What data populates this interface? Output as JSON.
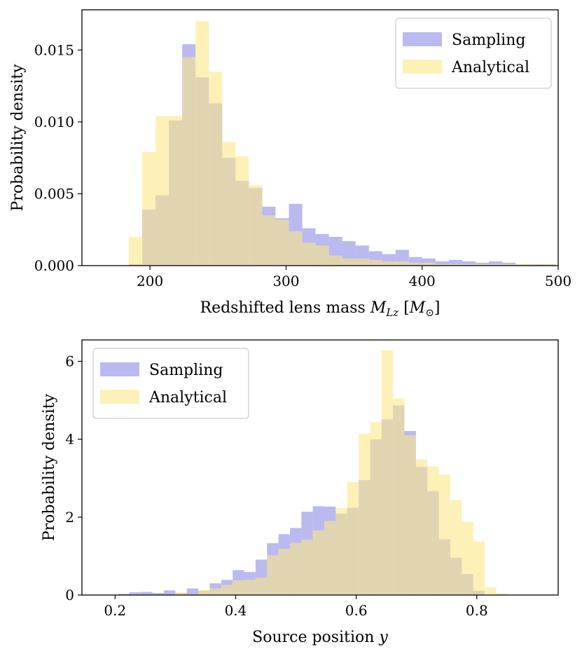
{
  "colors": {
    "sampling": "#8c8ce6",
    "analytical": "#fbe787",
    "frame": "#000000",
    "legend_border": "#cccccc"
  },
  "chart_data": [
    {
      "type": "histogram",
      "id": "mass",
      "title": "",
      "xlabel_parts": {
        "prefix": "Redshifted lens mass ",
        "symbol": "M",
        "subscript": "Lz",
        "unit_open": " [",
        "unit_symbol": "M",
        "unit_subscript": "⊙",
        "unit_close": "]"
      },
      "ylabel": "Probability density",
      "xlim": [
        150,
        500
      ],
      "ylim": [
        0,
        0.0178
      ],
      "xticks": [
        200,
        300,
        400,
        500
      ],
      "xtick_labels": [
        "200",
        "300",
        "400",
        "500"
      ],
      "yticks": [
        0,
        0.005,
        0.01,
        0.015
      ],
      "ytick_labels": [
        "0.000",
        "0.005",
        "0.010",
        "0.015"
      ],
      "legend": {
        "position": "top-right",
        "entries": [
          "Sampling",
          "Analytical"
        ]
      },
      "bin_width": 9.8,
      "bin_start": 184.5,
      "series": [
        {
          "name": "Sampling",
          "color_key": "sampling",
          "values": [
            0.0001,
            0.0039,
            0.0049,
            0.0101,
            0.0154,
            0.0131,
            0.0113,
            0.0075,
            0.0059,
            0.0054,
            0.0041,
            0.0033,
            0.0043,
            0.0026,
            0.0022,
            0.002,
            0.0017,
            0.0014,
            0.001,
            0.0008,
            0.0011,
            0.0006,
            0.0005,
            0.0003,
            0.0004,
            0.0003,
            0.0002,
            0.0003,
            0.0002,
            0.0001,
            0.0001,
            0.0001
          ]
        },
        {
          "name": "Analytical",
          "color_key": "analytical",
          "values": [
            0.002,
            0.0079,
            0.0104,
            0.0104,
            0.0145,
            0.017,
            0.0135,
            0.0086,
            0.0076,
            0.0056,
            0.0035,
            0.0032,
            0.0024,
            0.0016,
            0.0014,
            0.0007,
            0.0005,
            0.0005,
            0.0004,
            0.0003,
            0.0003,
            0.0002,
            0.0002,
            0.0001,
            0.0001,
            0.0001,
            0.0001,
            0.0001,
            0.0001,
            0.0001,
            0.0001,
            0.0001
          ]
        }
      ]
    },
    {
      "type": "histogram",
      "id": "position",
      "title": "",
      "xlabel_parts": {
        "prefix": "Source position ",
        "symbol": "y"
      },
      "ylabel": "Probability density",
      "xlim": [
        0.145,
        0.935
      ],
      "ylim": [
        0,
        6.55
      ],
      "xticks": [
        0.2,
        0.4,
        0.6,
        0.8
      ],
      "xtick_labels": [
        "0.2",
        "0.4",
        "0.6",
        "0.8"
      ],
      "yticks": [
        0,
        2,
        4,
        6
      ],
      "ytick_labels": [
        "0",
        "2",
        "4",
        "6"
      ],
      "legend": {
        "position": "top-left",
        "entries": [
          "Sampling",
          "Analytical"
        ]
      },
      "bin_width": 0.019,
      "bin_start": 0.167,
      "series": [
        {
          "name": "Sampling",
          "color_key": "sampling",
          "values": [
            0.0,
            0.0,
            0.03,
            0.07,
            0.08,
            0.05,
            0.12,
            0.05,
            0.17,
            0.11,
            0.3,
            0.39,
            0.64,
            0.59,
            0.91,
            1.33,
            1.56,
            1.72,
            2.14,
            2.28,
            2.27,
            2.09,
            2.24,
            2.95,
            4.0,
            4.51,
            4.87,
            4.21,
            3.29,
            2.67,
            1.43,
            0.96,
            0.54,
            0.11,
            0.0,
            0.0
          ]
        },
        {
          "name": "Analytical",
          "color_key": "analytical",
          "values": [
            0.0,
            0.0,
            0.0,
            0.0,
            0.0,
            0.0,
            0.0,
            0.07,
            0.02,
            0.13,
            0.17,
            0.26,
            0.38,
            0.39,
            0.45,
            1.02,
            1.19,
            1.34,
            1.42,
            1.66,
            1.9,
            2.23,
            2.9,
            4.14,
            4.44,
            6.28,
            5.05,
            4.1,
            3.48,
            3.3,
            3.09,
            2.44,
            1.88,
            1.37,
            0.2,
            0.04
          ]
        }
      ]
    }
  ]
}
